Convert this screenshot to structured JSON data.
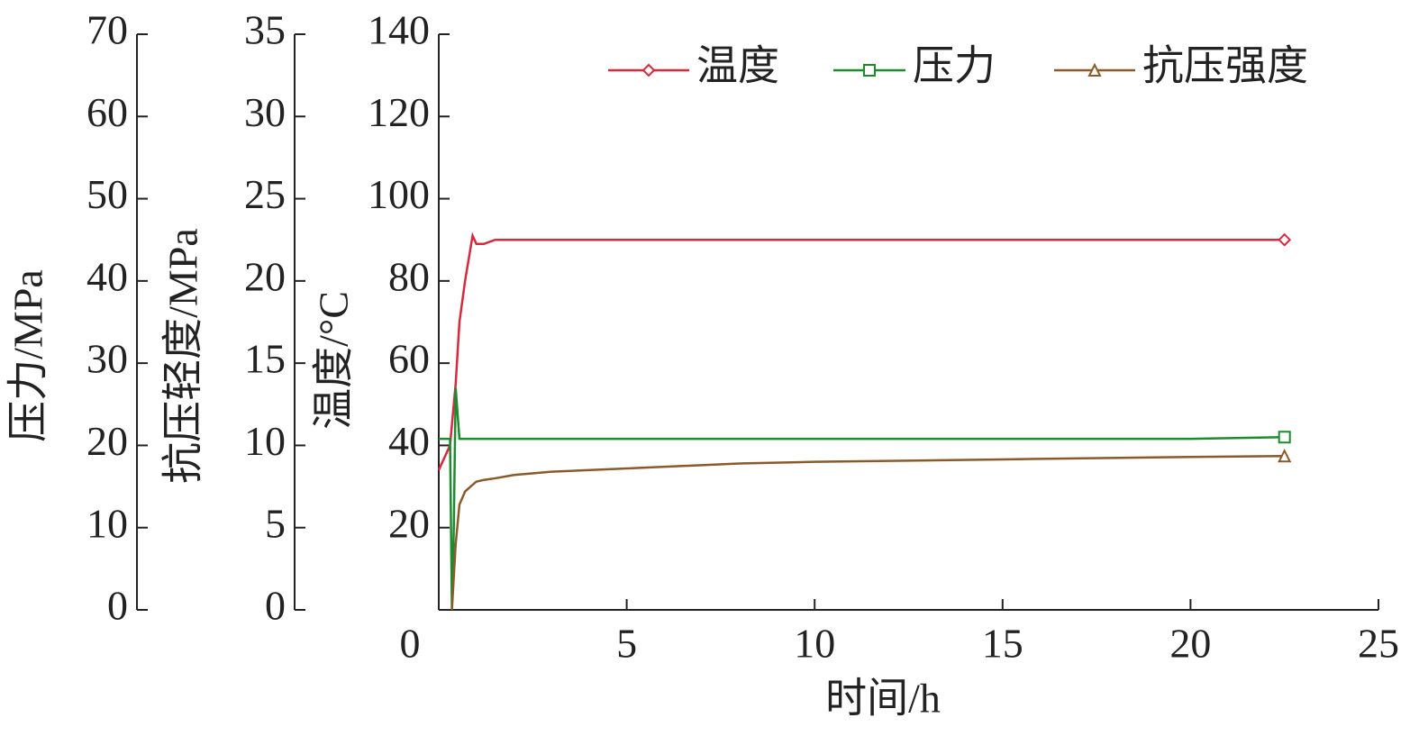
{
  "chart_data": {
    "type": "line",
    "xlabel": "时间/h",
    "x": [
      0,
      0.3,
      0.35,
      0.4,
      0.45,
      0.55,
      0.7,
      0.9,
      1.0,
      1.2,
      1.5,
      2,
      3,
      5,
      8,
      10,
      15,
      20,
      22.5
    ],
    "xlim": [
      0,
      25
    ],
    "xticks": [
      0,
      5,
      10,
      15,
      20,
      25
    ],
    "ylabel": "温度/°C",
    "ylim": [
      0,
      140
    ],
    "yticks": [
      20,
      40,
      60,
      80,
      100,
      120,
      140
    ],
    "y2label": "抗压轻度/MPa",
    "y2lim": [
      0,
      35
    ],
    "y2ticks": [
      0,
      5,
      10,
      15,
      20,
      25,
      30,
      35
    ],
    "y3label": "压力/MPa",
    "y3lim": [
      0,
      70
    ],
    "y3ticks": [
      0,
      10,
      20,
      30,
      40,
      50,
      60,
      70
    ],
    "legend": "top-right",
    "series": [
      {
        "name": "温度",
        "color": "#d8283c",
        "marker": "diamond",
        "axis": "y",
        "values": [
          34,
          40,
          45,
          50,
          55,
          70,
          80,
          91,
          89,
          89,
          90,
          90,
          90,
          90,
          90,
          90,
          90,
          90,
          90
        ]
      },
      {
        "name": "压力",
        "color": "#1e8a2e",
        "marker": "square",
        "axis": "y3",
        "values": [
          20.8,
          20.8,
          0,
          10,
          27,
          20.8,
          20.8,
          20.8,
          20.8,
          20.8,
          20.8,
          20.8,
          20.8,
          20.8,
          20.8,
          20.8,
          20.8,
          20.8,
          21
        ]
      },
      {
        "name": "抗压强度",
        "color": "#8b5a2b",
        "marker": "triangle",
        "axis": "y2",
        "values": [
          null,
          null,
          0,
          2,
          4,
          6.4,
          7.2,
          7.6,
          7.8,
          7.9,
          8.0,
          8.2,
          8.4,
          8.6,
          8.9,
          9.0,
          9.15,
          9.3,
          9.35
        ]
      }
    ]
  }
}
